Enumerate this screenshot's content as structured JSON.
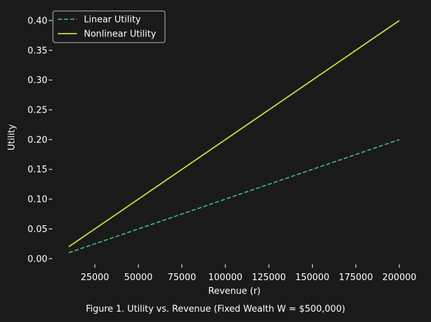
{
  "caption": "Figure 1. Utility vs. Revenue (Fixed Wealth W = $500,000)",
  "chart_data": {
    "type": "line",
    "xlabel": "Revenue (r)",
    "ylabel": "Utility",
    "xlim": [
      500,
      209500
    ],
    "ylim": [
      -0.0095,
      0.4195
    ],
    "grid": false,
    "legend_position": "top-left",
    "x_ticks": [
      25000,
      50000,
      75000,
      100000,
      125000,
      150000,
      175000,
      200000
    ],
    "x_tick_labels": [
      "25000",
      "50000",
      "75000",
      "100000",
      "125000",
      "150000",
      "175000",
      "200000"
    ],
    "y_ticks": [
      0.0,
      0.05,
      0.1,
      0.15,
      0.2,
      0.25,
      0.3,
      0.35,
      0.4
    ],
    "y_tick_labels": [
      "0.00",
      "0.05",
      "0.10",
      "0.15",
      "0.20",
      "0.25",
      "0.30",
      "0.35",
      "0.40"
    ],
    "series": [
      {
        "name": "Linear Utility",
        "color": "#3cb371",
        "dash": true,
        "x": [
          10000,
          200000
        ],
        "y": [
          0.01,
          0.2
        ]
      },
      {
        "name": "Nonlinear Utility",
        "color": "#c8e03c",
        "dash": false,
        "x": [
          10000,
          200000
        ],
        "y": [
          0.02,
          0.4
        ]
      }
    ]
  },
  "colors": {
    "background": "#1a1a1a",
    "text": "#ffffff",
    "axis": "#ffffff"
  }
}
